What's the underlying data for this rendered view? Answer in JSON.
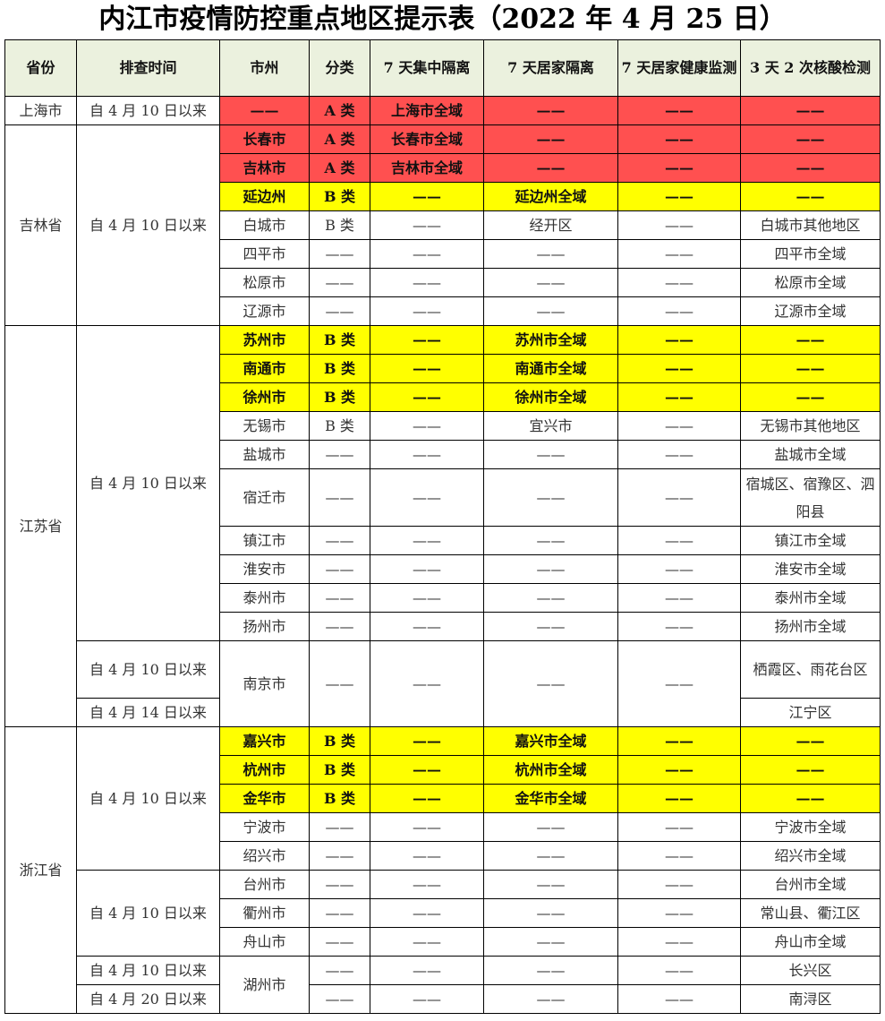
{
  "title": "内江市疫情防控重点地区提示表（2022 年 4 月 25 日）",
  "colors": {
    "red": "#ff5050",
    "yellow": "#ffff00",
    "header": "#ebf1de"
  },
  "headers": [
    "省份",
    "排查时间",
    "市州",
    "分类",
    "7 天集中隔离",
    "7 天居家隔离",
    "7 天居家健康监测",
    "3 天 2 次核酸检测"
  ],
  "rows": [
    {
      "hl": "red",
      "cells": [
        "上海市",
        "自 4 月 10 日以来",
        "——",
        "A 类",
        "上海市全域",
        "——",
        "——",
        "——"
      ]
    },
    {
      "hl": "red",
      "cells": [
        [
          "吉林省",
          7
        ],
        [
          "自 4 月 10 日以来",
          7
        ],
        "长春市",
        "A 类",
        "长春市全域",
        "——",
        "——",
        "——"
      ]
    },
    {
      "hl": "red",
      "cells": [
        "吉林市",
        "A 类",
        "吉林市全域",
        "——",
        "——",
        "——"
      ]
    },
    {
      "hl": "yellow",
      "cells": [
        "延边州",
        "B 类",
        "——",
        "延边州全域",
        "——",
        "——"
      ]
    },
    {
      "cells": [
        "白城市",
        "B 类",
        "——",
        "经开区",
        "——",
        "白城市其他地区"
      ]
    },
    {
      "cells": [
        "四平市",
        "——",
        "——",
        "——",
        "——",
        "四平市全域"
      ]
    },
    {
      "cells": [
        "松原市",
        "——",
        "——",
        "——",
        "——",
        "松原市全域"
      ]
    },
    {
      "cells": [
        "辽源市",
        "——",
        "——",
        "——",
        "——",
        "辽源市全域"
      ]
    },
    {
      "hl": "yellow",
      "cells": [
        [
          "江苏省",
          12
        ],
        [
          "自 4 月 10 日以来",
          10
        ],
        "苏州市",
        "B 类",
        "——",
        "苏州市全域",
        "——",
        "——"
      ]
    },
    {
      "hl": "yellow",
      "cells": [
        "南通市",
        "B 类",
        "——",
        "南通市全域",
        "——",
        "——"
      ]
    },
    {
      "hl": "yellow",
      "cells": [
        "徐州市",
        "B 类",
        "——",
        "徐州市全域",
        "——",
        "——"
      ]
    },
    {
      "cells": [
        "无锡市",
        "B 类",
        "——",
        "宜兴市",
        "——",
        "无锡市其他地区"
      ]
    },
    {
      "cells": [
        "盐城市",
        "——",
        "——",
        "——",
        "——",
        "盐城市全域"
      ]
    },
    {
      "tall": true,
      "cells": [
        "宿迁市",
        "——",
        "——",
        "——",
        "——",
        "宿城区、宿豫区、泗阳县"
      ]
    },
    {
      "cells": [
        "镇江市",
        "——",
        "——",
        "——",
        "——",
        "镇江市全域"
      ]
    },
    {
      "cells": [
        "淮安市",
        "——",
        "——",
        "——",
        "——",
        "淮安市全域"
      ]
    },
    {
      "cells": [
        "泰州市",
        "——",
        "——",
        "——",
        "——",
        "泰州市全域"
      ]
    },
    {
      "cells": [
        "扬州市",
        "——",
        "——",
        "——",
        "——",
        "扬州市全域"
      ]
    },
    {
      "tall": true,
      "cells": [
        "自 4 月 10 日以来",
        [
          "南京市",
          2
        ],
        [
          "——",
          2
        ],
        [
          "——",
          2
        ],
        [
          "——",
          2
        ],
        [
          "——",
          2
        ],
        "栖霞区、雨花台区"
      ]
    },
    {
      "cells": [
        "自 4 月 14 日以来",
        "江宁区"
      ]
    },
    {
      "hl": "yellow",
      "cells": [
        [
          "浙江省",
          10
        ],
        [
          "自 4 月 10 日以来",
          5
        ],
        "嘉兴市",
        "B 类",
        "——",
        "嘉兴市全域",
        "——",
        "——"
      ]
    },
    {
      "hl": "yellow",
      "cells": [
        "杭州市",
        "B 类",
        "——",
        "杭州市全域",
        "——",
        "——"
      ]
    },
    {
      "hl": "yellow",
      "cells": [
        "金华市",
        "B 类",
        "——",
        "金华市全域",
        "——",
        "——"
      ]
    },
    {
      "cells": [
        "宁波市",
        "——",
        "——",
        "——",
        "——",
        "宁波市全域"
      ]
    },
    {
      "cells": [
        "绍兴市",
        "——",
        "——",
        "——",
        "——",
        "绍兴市全域"
      ]
    },
    {
      "cells": [
        [
          "自 4 月 10 日以来",
          3
        ],
        "台州市",
        "——",
        "——",
        "——",
        "——",
        "台州市全域"
      ]
    },
    {
      "cells": [
        "衢州市",
        "——",
        "——",
        "——",
        "——",
        "常山县、衢江区"
      ]
    },
    {
      "cells": [
        "舟山市",
        "——",
        "——",
        "——",
        "——",
        "舟山市全域"
      ]
    },
    {
      "cells": [
        "自 4 月 10 日以来",
        [
          "湖州市",
          2
        ],
        "——",
        "——",
        "——",
        "——",
        "长兴区"
      ]
    },
    {
      "cells": [
        "自 4 月 20 日以来",
        "——",
        "——",
        "——",
        "——",
        "南浔区"
      ]
    }
  ]
}
